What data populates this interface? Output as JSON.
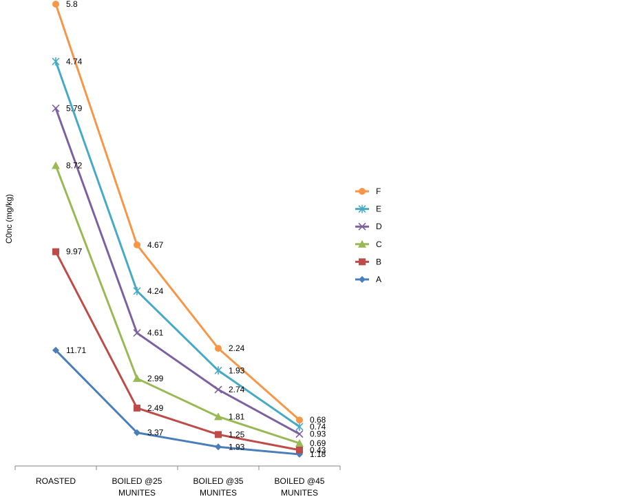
{
  "chart_data": {
    "type": "line",
    "title": "",
    "xlabel": "",
    "ylabel": "C0nc (mg/kg)",
    "stacked": true,
    "categories": [
      "ROASTED",
      "BOILED @25 MUNITES",
      "BOILED @35 MUNITES",
      "BOILED @45 MUNITES"
    ],
    "category_lines": [
      [
        "ROASTED"
      ],
      [
        "BOILED @25",
        "MUNITES"
      ],
      [
        "BOILED @35",
        "MUNITES"
      ],
      [
        "BOILED @45",
        "MUNITES"
      ]
    ],
    "legend_position": "right",
    "series": [
      {
        "name": "A",
        "marker": "diamond",
        "color": "#4A7EBB",
        "values": [
          11.71,
          3.37,
          1.93,
          1.18
        ]
      },
      {
        "name": "B",
        "marker": "square",
        "color": "#BE4B48",
        "values": [
          9.97,
          2.49,
          1.25,
          0.43
        ]
      },
      {
        "name": "C",
        "marker": "triangle",
        "color": "#98B954",
        "values": [
          8.72,
          2.99,
          1.81,
          0.69
        ]
      },
      {
        "name": "D",
        "marker": "x",
        "color": "#7D60A0",
        "values": [
          5.79,
          4.61,
          2.74,
          0.93
        ]
      },
      {
        "name": "E",
        "marker": "star",
        "color": "#46AAC5",
        "values": [
          4.74,
          4.24,
          1.93,
          0.74
        ]
      },
      {
        "name": "F",
        "marker": "circle",
        "color": "#F79646",
        "values": [
          5.8,
          4.67,
          2.24,
          0.68
        ]
      }
    ]
  }
}
